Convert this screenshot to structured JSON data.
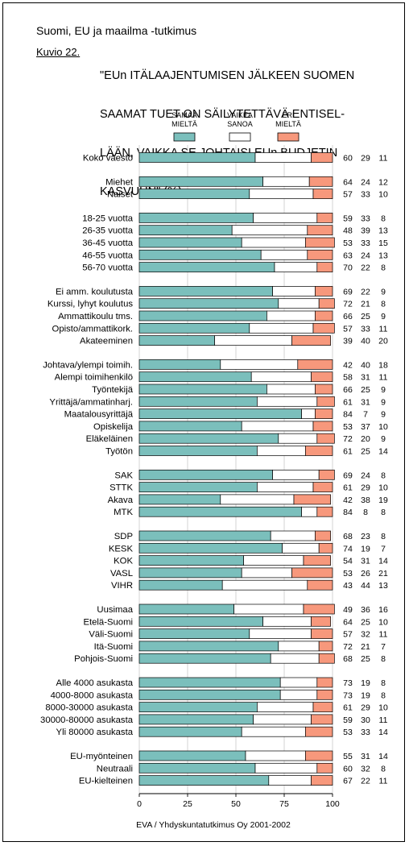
{
  "header": {
    "survey": "Suomi, EU ja maailma -tutkimus",
    "figure_label": "Kuvio 22.",
    "title_lines": [
      "\"EUn ITÄLAAJENTUMISEN JÄLKEEN SUOMEN",
      "SAAMAT TUET ON SÄILYTETTÄVÄ ENTISEL-",
      "LÄÄN, VAIKKA SE JOHTAISI EUn BUDJETIN",
      "KASVUUN\" (%)."
    ]
  },
  "footer": {
    "source": "EVA / Yhdyskuntatutkimus Oy 2001-2002"
  },
  "colors": {
    "agree": "#7bbfbc",
    "unsure": "#ffffff",
    "disagree": "#f7987c"
  },
  "chart_data": {
    "type": "bar",
    "stacked": true,
    "orientation": "horizontal",
    "legend_position": "top",
    "x_ticks": [
      0,
      25,
      50,
      75,
      100
    ],
    "xlim": [
      0,
      100
    ],
    "series": [
      {
        "name": "SAMAA MIELTÄ",
        "label_lines": [
          "SAMAA",
          "MIELTÄ"
        ]
      },
      {
        "name": "VAIKEA SANOA",
        "label_lines": [
          "VAIKEA",
          "SANOA"
        ]
      },
      {
        "name": "ERI MIELTÄ",
        "label_lines": [
          "ERI",
          "MIELTÄ"
        ]
      }
    ],
    "groups": [
      {
        "rows": [
          {
            "label": "Koko väestö",
            "values": [
              60,
              29,
              11
            ]
          }
        ]
      },
      {
        "rows": [
          {
            "label": "Miehet",
            "values": [
              64,
              24,
              12
            ]
          },
          {
            "label": "Naiset",
            "values": [
              57,
              33,
              10
            ]
          }
        ]
      },
      {
        "rows": [
          {
            "label": "18-25 vuotta",
            "values": [
              59,
              33,
              8
            ]
          },
          {
            "label": "26-35 vuotta",
            "values": [
              48,
              39,
              13
            ]
          },
          {
            "label": "36-45 vuotta",
            "values": [
              53,
              33,
              15
            ]
          },
          {
            "label": "46-55 vuotta",
            "values": [
              63,
              24,
              13
            ]
          },
          {
            "label": "56-70 vuotta",
            "values": [
              70,
              22,
              8
            ]
          }
        ]
      },
      {
        "rows": [
          {
            "label": "Ei amm. koulutusta",
            "values": [
              69,
              22,
              9
            ]
          },
          {
            "label": "Kurssi, lyhyt koulutus",
            "values": [
              72,
              21,
              8
            ]
          },
          {
            "label": "Ammattikoulu tms.",
            "values": [
              66,
              25,
              9
            ]
          },
          {
            "label": "Opisto/ammattikork.",
            "values": [
              57,
              33,
              11
            ]
          },
          {
            "label": "Akateeminen",
            "values": [
              39,
              40,
              20
            ]
          }
        ]
      },
      {
        "rows": [
          {
            "label": "Johtava/ylempi toimih.",
            "values": [
              42,
              40,
              18
            ]
          },
          {
            "label": "Alempi toimihenkilö",
            "values": [
              58,
              31,
              11
            ]
          },
          {
            "label": "Työntekijä",
            "values": [
              66,
              25,
              9
            ]
          },
          {
            "label": "Yrittäjä/ammatinharj.",
            "values": [
              61,
              31,
              9
            ]
          },
          {
            "label": "Maatalousyrittäjä",
            "values": [
              84,
              7,
              9
            ]
          },
          {
            "label": "Opiskelija",
            "values": [
              53,
              37,
              10
            ]
          },
          {
            "label": "Eläkeläinen",
            "values": [
              72,
              20,
              9
            ]
          },
          {
            "label": "Työtön",
            "values": [
              61,
              25,
              14
            ]
          }
        ]
      },
      {
        "rows": [
          {
            "label": "SAK",
            "values": [
              69,
              24,
              8
            ]
          },
          {
            "label": "STTK",
            "values": [
              61,
              29,
              10
            ]
          },
          {
            "label": "Akava",
            "values": [
              42,
              38,
              19
            ]
          },
          {
            "label": "MTK",
            "values": [
              84,
              8,
              8
            ]
          }
        ]
      },
      {
        "rows": [
          {
            "label": "SDP",
            "values": [
              68,
              23,
              8
            ]
          },
          {
            "label": "KESK",
            "values": [
              74,
              19,
              7
            ]
          },
          {
            "label": "KOK",
            "values": [
              54,
              31,
              14
            ]
          },
          {
            "label": "VASL",
            "values": [
              53,
              26,
              21
            ]
          },
          {
            "label": "VIHR",
            "values": [
              43,
              44,
              13
            ]
          }
        ]
      },
      {
        "rows": [
          {
            "label": "Uusimaa",
            "values": [
              49,
              36,
              16
            ]
          },
          {
            "label": "Etelä-Suomi",
            "values": [
              64,
              25,
              10
            ]
          },
          {
            "label": "Väli-Suomi",
            "values": [
              57,
              32,
              11
            ]
          },
          {
            "label": "Itä-Suomi",
            "values": [
              72,
              21,
              7
            ]
          },
          {
            "label": "Pohjois-Suomi",
            "values": [
              68,
              25,
              8
            ]
          }
        ]
      },
      {
        "rows": [
          {
            "label": "Alle 4000 asukasta",
            "values": [
              73,
              19,
              8
            ]
          },
          {
            "label": "4000-8000 asukasta",
            "values": [
              73,
              19,
              8
            ]
          },
          {
            "label": "8000-30000 asukasta",
            "values": [
              61,
              29,
              10
            ]
          },
          {
            "label": "30000-80000 asukasta",
            "values": [
              59,
              30,
              11
            ]
          },
          {
            "label": "Yli 80000 asukasta",
            "values": [
              53,
              33,
              14
            ]
          }
        ]
      },
      {
        "rows": [
          {
            "label": "EU-myönteinen",
            "values": [
              55,
              31,
              14
            ]
          },
          {
            "label": "Neutraali",
            "values": [
              60,
              32,
              8
            ]
          },
          {
            "label": "EU-kielteinen",
            "values": [
              67,
              22,
              11
            ]
          }
        ]
      }
    ]
  }
}
